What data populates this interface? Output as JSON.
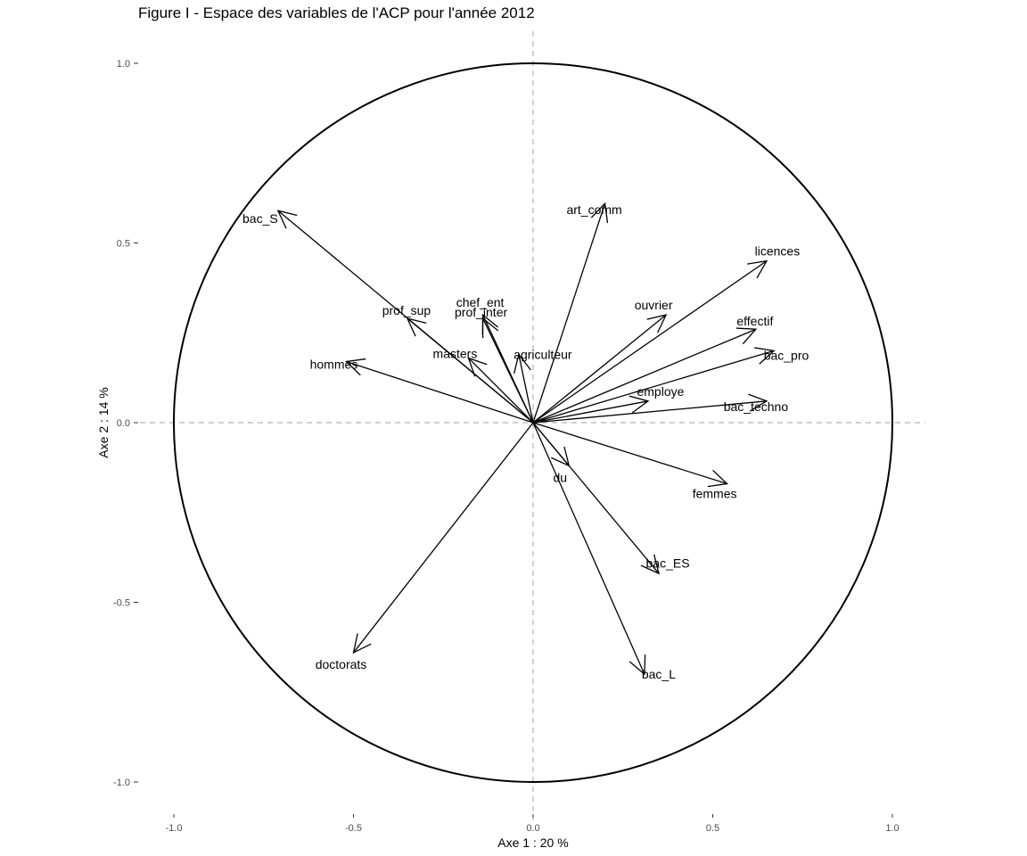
{
  "chart_data": {
    "type": "scatter",
    "title": "Figure I - Espace des variables de l'ACP pour l'année 2012",
    "xlabel": "Axe 1 : 20 %",
    "ylabel": "Axe 2 : 14 %",
    "xlim": [
      -1.0,
      1.0
    ],
    "ylim": [
      -1.0,
      1.0
    ],
    "x_ticks": [
      "-1.0",
      "-0.5",
      "0.0",
      "0.5",
      "1.0"
    ],
    "y_ticks": [
      "-1.0",
      "-0.5",
      "0.0",
      "0.5",
      "1.0"
    ],
    "x_tick_values": [
      -1.0,
      -0.5,
      0.0,
      0.5,
      1.0
    ],
    "y_tick_values": [
      -1.0,
      -0.5,
      0.0,
      0.5,
      1.0
    ],
    "unit_circle": true,
    "grid": false,
    "variables": [
      {
        "name": "art_comm",
        "x": 0.2,
        "y": 0.61
      },
      {
        "name": "licences",
        "x": 0.65,
        "y": 0.45
      },
      {
        "name": "ouvrier",
        "x": 0.37,
        "y": 0.3
      },
      {
        "name": "effectif",
        "x": 0.62,
        "y": 0.26
      },
      {
        "name": "bac_pro",
        "x": 0.67,
        "y": 0.2
      },
      {
        "name": "employe",
        "x": 0.32,
        "y": 0.06
      },
      {
        "name": "bac_techno",
        "x": 0.65,
        "y": 0.06
      },
      {
        "name": "femmes",
        "x": 0.54,
        "y": -0.17
      },
      {
        "name": "du",
        "x": 0.1,
        "y": -0.12
      },
      {
        "name": "bac_ES",
        "x": 0.35,
        "y": -0.42
      },
      {
        "name": "bac_L",
        "x": 0.31,
        "y": -0.7
      },
      {
        "name": "doctorats",
        "x": -0.5,
        "y": -0.64
      },
      {
        "name": "hommes",
        "x": -0.52,
        "y": 0.17
      },
      {
        "name": "masters",
        "x": -0.18,
        "y": 0.18
      },
      {
        "name": "bac_S",
        "x": -0.71,
        "y": 0.59
      },
      {
        "name": "prof_sup",
        "x": -0.35,
        "y": 0.29
      },
      {
        "name": "chef_ent",
        "x": -0.14,
        "y": 0.3
      },
      {
        "name": "prof_inter",
        "x": -0.14,
        "y": 0.29
      },
      {
        "name": "agriculteur",
        "x": -0.04,
        "y": 0.19
      }
    ]
  }
}
